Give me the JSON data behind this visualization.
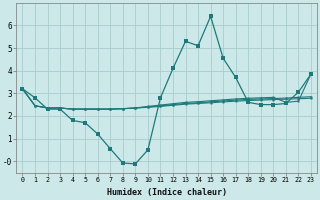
{
  "xlabel": "Humidex (Indice chaleur)",
  "bg_color": "#cce8e8",
  "grid_color": "#aacccc",
  "line_color": "#1e7a7a",
  "x_values": [
    0,
    1,
    2,
    3,
    4,
    5,
    6,
    7,
    8,
    9,
    10,
    11,
    12,
    13,
    14,
    15,
    16,
    17,
    18,
    19,
    20,
    21,
    22,
    23
  ],
  "series_main": [
    3.2,
    2.8,
    2.3,
    2.3,
    1.8,
    1.7,
    1.2,
    0.55,
    -0.08,
    -0.12,
    0.5,
    2.8,
    4.1,
    5.3,
    5.1,
    6.4,
    4.55,
    3.7,
    2.6,
    2.5,
    2.5,
    2.55,
    3.05,
    3.85
  ],
  "series_flat1": [
    3.2,
    2.45,
    2.35,
    2.35,
    2.3,
    2.3,
    2.3,
    2.3,
    2.32,
    2.35,
    2.38,
    2.42,
    2.47,
    2.52,
    2.55,
    2.58,
    2.62,
    2.65,
    2.68,
    2.7,
    2.72,
    2.74,
    2.76,
    2.78
  ],
  "series_flat2": [
    3.2,
    2.45,
    2.35,
    2.35,
    2.3,
    2.3,
    2.3,
    2.3,
    2.32,
    2.35,
    2.4,
    2.45,
    2.5,
    2.55,
    2.58,
    2.62,
    2.66,
    2.7,
    2.73,
    2.75,
    2.77,
    2.79,
    2.82,
    2.85
  ],
  "series_end_up": [
    3.2,
    2.45,
    2.35,
    2.35,
    2.3,
    2.3,
    2.3,
    2.3,
    2.32,
    2.35,
    2.42,
    2.48,
    2.54,
    2.6,
    2.63,
    2.67,
    2.71,
    2.75,
    2.78,
    2.8,
    2.82,
    2.6,
    2.65,
    3.85
  ],
  "ylim": [
    -0.5,
    7.0
  ],
  "xlim": [
    -0.5,
    23.5
  ],
  "yticks": [
    0,
    1,
    2,
    3,
    4,
    5,
    6
  ]
}
